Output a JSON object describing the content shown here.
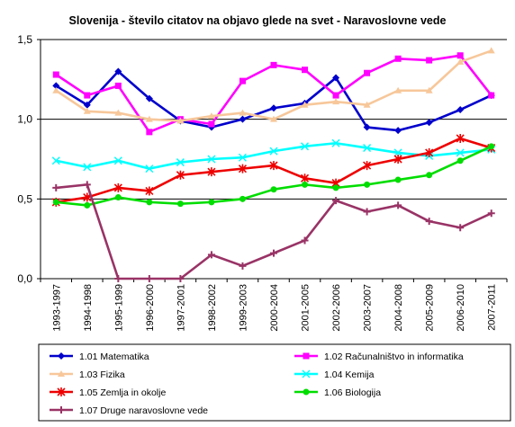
{
  "chart_data": {
    "type": "line",
    "title": "Slovenija - število citatov na objavo glede na svet - Naravoslovne vede",
    "xlabel": "",
    "ylabel": "",
    "ylim": [
      0,
      1.5
    ],
    "yticks": [
      "0,0",
      "0,5",
      "1,0",
      "1,5"
    ],
    "grid": "horizontal at 0,5 / 1,0 / 1,5",
    "legend_position": "bottom",
    "categories": [
      "1993-1997",
      "1994-1998",
      "1995-1999",
      "1996-2000",
      "1997-2001",
      "1998-2002",
      "1999-2003",
      "2000-2004",
      "2001-2005",
      "2002-2006",
      "2003-2007",
      "2004-2008",
      "2005-2009",
      "2006-2010",
      "2007-2011"
    ],
    "series": [
      {
        "name": "1.01 Matematika",
        "color": "#0000cc",
        "marker": "diamond",
        "values": [
          1.21,
          1.09,
          1.3,
          1.13,
          0.99,
          0.95,
          1.0,
          1.07,
          1.1,
          1.26,
          0.95,
          0.93,
          0.98,
          1.06,
          1.15
        ]
      },
      {
        "name": "1.02 Računalništvo in informatika",
        "color": "#ff00ff",
        "marker": "square",
        "values": [
          1.28,
          1.15,
          1.21,
          0.92,
          1.0,
          0.97,
          1.24,
          1.34,
          1.31,
          1.15,
          1.29,
          1.38,
          1.37,
          1.4,
          1.15
        ]
      },
      {
        "name": "1.03 Fizika",
        "color": "#f7c79a",
        "marker": "triangle",
        "values": [
          1.18,
          1.05,
          1.04,
          1.0,
          0.99,
          1.02,
          1.04,
          1.0,
          1.09,
          1.11,
          1.09,
          1.18,
          1.18,
          1.36,
          1.43
        ]
      },
      {
        "name": "1.04 Kemija",
        "color": "#00ffff",
        "marker": "x",
        "values": [
          0.74,
          0.7,
          0.74,
          0.69,
          0.73,
          0.75,
          0.76,
          0.8,
          0.83,
          0.85,
          0.82,
          0.79,
          0.77,
          0.79,
          0.81
        ]
      },
      {
        "name": "1.05 Zemlja in okolje",
        "color": "#ee0000",
        "marker": "star",
        "values": [
          0.48,
          0.51,
          0.57,
          0.55,
          0.65,
          0.67,
          0.69,
          0.71,
          0.63,
          0.6,
          0.71,
          0.75,
          0.79,
          0.88,
          0.82
        ]
      },
      {
        "name": "1.06 Biologija",
        "color": "#00dd00",
        "marker": "circle",
        "values": [
          0.48,
          0.46,
          0.51,
          0.48,
          0.47,
          0.48,
          0.5,
          0.56,
          0.59,
          0.57,
          0.59,
          0.62,
          0.65,
          0.74,
          0.83
        ]
      },
      {
        "name": "1.07 Druge naravoslovne vede",
        "color": "#993366",
        "marker": "plus",
        "values": [
          0.57,
          0.59,
          0.0,
          0.0,
          0.0,
          0.15,
          0.08,
          0.16,
          0.24,
          0.49,
          0.42,
          0.46,
          0.36,
          0.32,
          0.41
        ]
      }
    ]
  }
}
